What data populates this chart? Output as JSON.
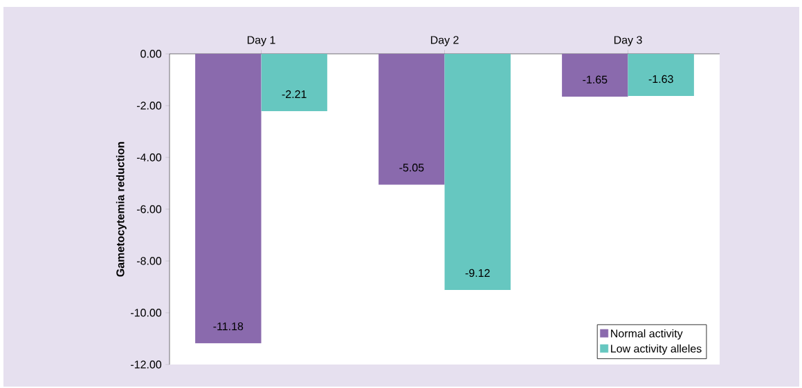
{
  "chart_data": {
    "type": "bar",
    "ylabel": "Gametocytemia reduction",
    "categories": [
      "Day 1",
      "Day 2",
      "Day 3"
    ],
    "series": [
      {
        "name": "Normal activity",
        "color": "#8a6aad",
        "values": [
          -11.18,
          -5.05,
          -1.65
        ]
      },
      {
        "name": "Low activity alleles",
        "color": "#66c7c0",
        "values": [
          -2.21,
          -9.12,
          -1.63
        ]
      }
    ],
    "ylim": [
      -12,
      0
    ],
    "yticks": [
      {
        "value": 0,
        "label": "0.00"
      },
      {
        "value": -2,
        "label": "-2.00"
      },
      {
        "value": -4,
        "label": "-4.00"
      },
      {
        "value": -6,
        "label": "-6.00"
      },
      {
        "value": -8,
        "label": "-8.00"
      },
      {
        "value": -10,
        "label": "-10.00"
      },
      {
        "value": -12,
        "label": "-12.00"
      }
    ],
    "data_labels": true,
    "legend": "bottom right",
    "grid": false
  }
}
